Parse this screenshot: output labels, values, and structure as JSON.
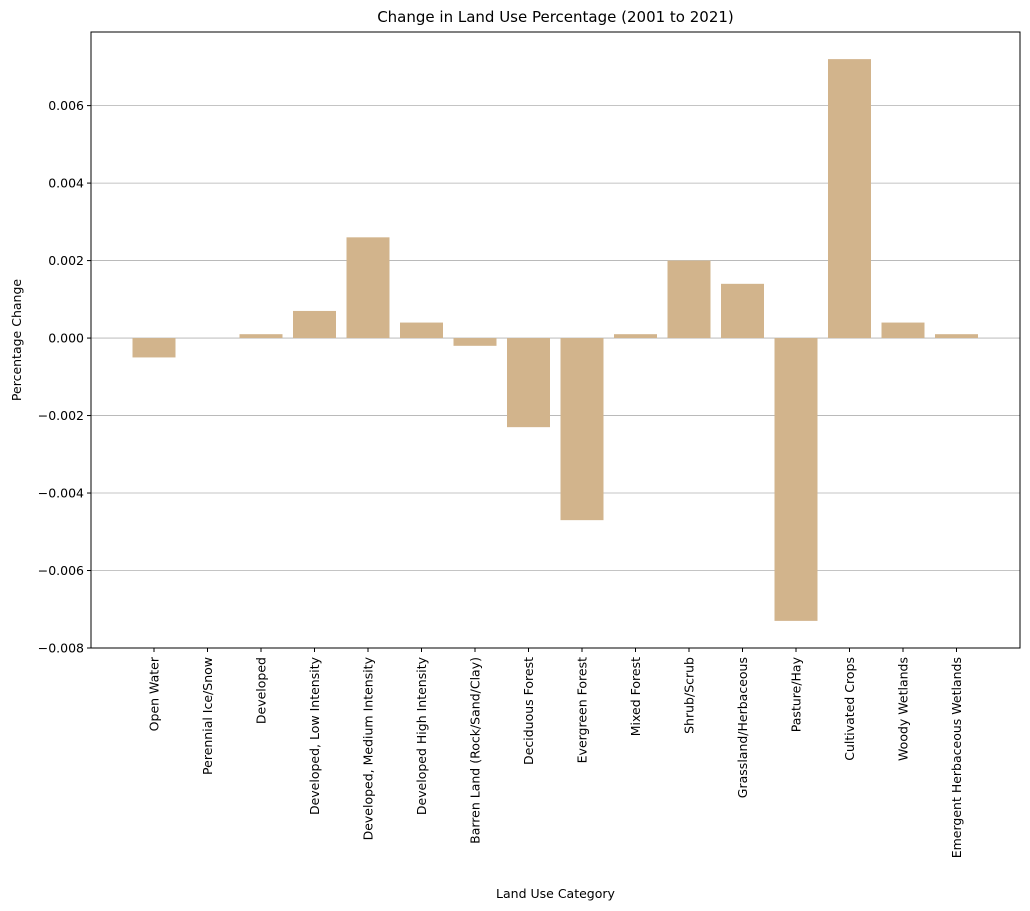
{
  "chart_data": {
    "type": "bar",
    "title": "Change in Land Use Percentage (2001 to 2021)",
    "xlabel": "Land Use Category",
    "ylabel": "Percentage Change",
    "categories": [
      "Open Water",
      "Perennial Ice/Snow",
      "Developed",
      "Developed, Low Intensity",
      "Developed, Medium Intensity",
      "Developed High Intensity",
      "Barren Land (Rock/Sand/Clay)",
      "Deciduous Forest",
      "Evergreen Forest",
      "Mixed Forest",
      "Shrub/Scrub",
      "Grassland/Herbaceous",
      "Pasture/Hay",
      "Cultivated Crops",
      "Woody Wetlands",
      "Emergent Herbaceous Wetlands"
    ],
    "values": [
      -0.0005,
      0.0,
      0.0001,
      0.0007,
      0.0026,
      0.0004,
      -0.0002,
      -0.0023,
      -0.0047,
      0.0001,
      0.002,
      0.0014,
      -0.0073,
      0.0072,
      0.0004,
      0.0001
    ],
    "ylim": [
      -0.008,
      0.008
    ],
    "yticks": [
      -0.008,
      -0.006,
      -0.004,
      -0.002,
      0.0,
      0.002,
      0.004,
      0.006
    ],
    "ytick_labels": [
      "−0.008",
      "−0.006",
      "−0.004",
      "−0.002",
      "0.000",
      "0.002",
      "0.004",
      "0.006"
    ],
    "grid": "y",
    "bar_color": "#d2b48c"
  }
}
